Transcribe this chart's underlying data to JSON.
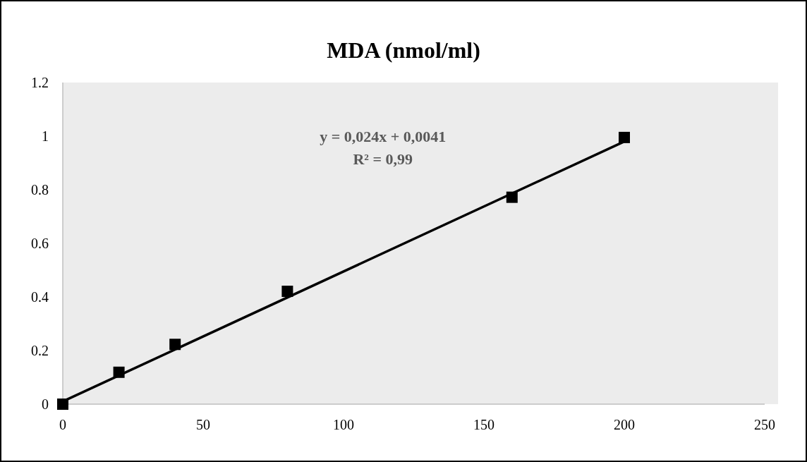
{
  "chart_data": {
    "type": "scatter",
    "title": "MDA (nmol/ml)",
    "x": [
      0,
      20,
      40,
      80,
      160,
      200
    ],
    "series": [
      {
        "color": "#000000",
        "marker": "square",
        "values": [
          0,
          0.119,
          0.223,
          0.421,
          0.772,
          0.995
        ]
      },
      {
        "type": "line",
        "color": "#000000",
        "x": [
          0,
          200
        ],
        "values": [
          0.01,
          0.98
        ]
      }
    ],
    "annotations": [
      "y = 0,024x + 0,0041",
      "R² = 0,99"
    ],
    "xlim": [
      0,
      250
    ],
    "xticks": [
      0,
      50,
      100,
      150,
      200,
      250
    ],
    "ylim": [
      0,
      1.2
    ],
    "yticks": [
      0,
      0.2,
      0.4,
      0.6,
      0.8,
      1,
      1.2
    ]
  }
}
